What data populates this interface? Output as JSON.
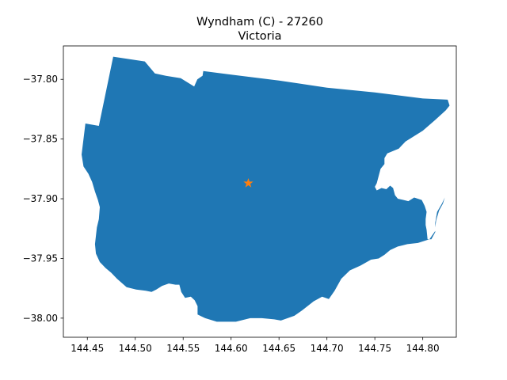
{
  "chart_data": {
    "type": "map",
    "title": "Wyndham (C) - 27260",
    "subtitle": "Victoria",
    "xlim": [
      144.425,
      144.835
    ],
    "ylim": [
      -38.016,
      -37.772
    ],
    "xticks": [
      "144.45",
      "144.50",
      "144.55",
      "144.60",
      "144.65",
      "144.70",
      "144.75",
      "144.80"
    ],
    "xtick_values": [
      144.45,
      144.5,
      144.55,
      144.6,
      144.65,
      144.7,
      144.75,
      144.8
    ],
    "yticks": [
      "−37.80",
      "−37.85",
      "−37.90",
      "−37.95",
      "−38.00"
    ],
    "ytick_values": [
      -37.8,
      -37.85,
      -37.9,
      -37.95,
      -38.0
    ],
    "region_color": "#1f77b4",
    "marker": {
      "lon": 144.618,
      "lat": -37.887,
      "symbol": "star",
      "color": "#ff7f0e"
    },
    "boundary": [
      [
        144.444,
        -37.863
      ],
      [
        144.448,
        -37.837
      ],
      [
        144.462,
        -37.839
      ],
      [
        144.477,
        -37.781
      ],
      [
        144.51,
        -37.785
      ],
      [
        144.5205,
        -37.795
      ],
      [
        144.532,
        -37.797
      ],
      [
        144.5474,
        -37.799
      ],
      [
        144.5615,
        -37.806
      ],
      [
        144.5648,
        -37.8
      ],
      [
        144.5702,
        -37.797
      ],
      [
        144.571,
        -37.793
      ],
      [
        144.6,
        -37.796
      ],
      [
        144.65,
        -37.801
      ],
      [
        144.7,
        -37.807
      ],
      [
        144.75,
        -37.811
      ],
      [
        144.8,
        -37.816
      ],
      [
        144.826,
        -37.817
      ],
      [
        144.828,
        -37.822
      ],
      [
        144.824,
        -37.826
      ],
      [
        144.813,
        -37.834
      ],
      [
        144.8,
        -37.843
      ],
      [
        144.782,
        -37.852
      ],
      [
        144.775,
        -37.858
      ],
      [
        144.763,
        -37.862
      ],
      [
        144.76,
        -37.866
      ],
      [
        144.76,
        -37.871
      ],
      [
        144.756,
        -37.875
      ],
      [
        144.754,
        -37.881
      ],
      [
        144.752,
        -37.887
      ],
      [
        144.75,
        -37.89
      ],
      [
        144.752,
        -37.893
      ],
      [
        144.757,
        -37.891
      ],
      [
        144.762,
        -37.892
      ],
      [
        144.766,
        -37.889
      ],
      [
        144.769,
        -37.891
      ],
      [
        144.771,
        -37.897
      ],
      [
        144.774,
        -37.9
      ],
      [
        144.78,
        -37.901
      ],
      [
        144.785,
        -37.902
      ],
      [
        144.791,
        -37.899
      ],
      [
        144.799,
        -37.901
      ],
      [
        144.802,
        -37.906
      ],
      [
        144.804,
        -37.911
      ],
      [
        144.803,
        -37.917
      ],
      [
        144.803,
        -37.922
      ],
      [
        144.804,
        -37.926
      ],
      [
        144.805,
        -37.934
      ],
      [
        144.809,
        -37.934
      ],
      [
        144.813,
        -37.928
      ],
      [
        144.813,
        -37.924
      ],
      [
        144.814,
        -37.918
      ],
      [
        144.817,
        -37.91
      ],
      [
        144.821,
        -37.904
      ],
      [
        144.823,
        -37.899
      ],
      [
        144.82,
        -37.904
      ],
      [
        144.815,
        -37.911
      ],
      [
        144.813,
        -37.92
      ],
      [
        144.813,
        -37.927
      ],
      [
        144.807,
        -37.934
      ],
      [
        144.795,
        -37.937
      ],
      [
        144.784,
        -37.938
      ],
      [
        144.774,
        -37.94
      ],
      [
        144.766,
        -37.943
      ],
      [
        144.76,
        -37.947
      ],
      [
        144.754,
        -37.95
      ],
      [
        144.746,
        -37.951
      ],
      [
        144.735,
        -37.956
      ],
      [
        144.724,
        -37.96
      ],
      [
        144.715,
        -37.967
      ],
      [
        144.708,
        -37.977
      ],
      [
        144.702,
        -37.984
      ],
      [
        144.695,
        -37.982
      ],
      [
        144.686,
        -37.986
      ],
      [
        144.675,
        -37.993
      ],
      [
        144.666,
        -37.998
      ],
      [
        144.652,
        -38.002
      ],
      [
        144.645,
        -38.001
      ],
      [
        144.632,
        -38.0
      ],
      [
        144.62,
        -38.0
      ],
      [
        144.605,
        -38.003
      ],
      [
        144.585,
        -38.003
      ],
      [
        144.573,
        -38.0
      ],
      [
        144.565,
        -37.997
      ],
      [
        144.565,
        -37.99
      ],
      [
        144.562,
        -37.985
      ],
      [
        144.558,
        -37.982
      ],
      [
        144.552,
        -37.983
      ],
      [
        144.548,
        -37.978
      ],
      [
        144.546,
        -37.972
      ],
      [
        144.542,
        -37.972
      ],
      [
        144.535,
        -37.971
      ],
      [
        144.528,
        -37.973
      ],
      [
        144.522,
        -37.976
      ],
      [
        144.517,
        -37.978
      ],
      [
        144.511,
        -37.977
      ],
      [
        144.501,
        -37.976
      ],
      [
        144.491,
        -37.974
      ],
      [
        144.481,
        -37.967
      ],
      [
        144.475,
        -37.962
      ],
      [
        144.469,
        -37.958
      ],
      [
        144.463,
        -37.953
      ],
      [
        144.459,
        -37.946
      ],
      [
        144.458,
        -37.938
      ],
      [
        144.459,
        -37.931
      ],
      [
        144.46,
        -37.924
      ],
      [
        144.462,
        -37.917
      ],
      [
        144.463,
        -37.907
      ],
      [
        144.461,
        -37.901
      ],
      [
        144.458,
        -37.894
      ],
      [
        144.455,
        -37.886
      ],
      [
        144.451,
        -37.879
      ],
      [
        144.446,
        -37.873
      ],
      [
        144.444,
        -37.863
      ]
    ]
  }
}
